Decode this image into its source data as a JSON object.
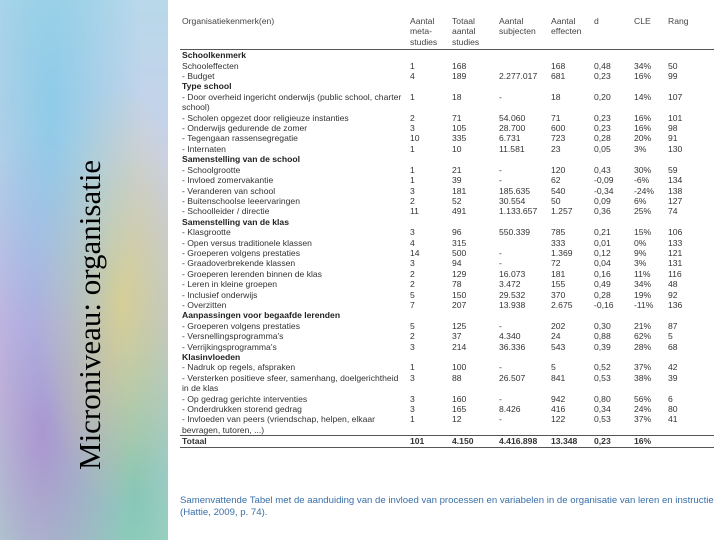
{
  "slide_title": "Microniveau: organisatie",
  "table": {
    "columns": [
      "Organisatiekenmerk(en)",
      "Aantal meta-studies",
      "Totaal aantal studies",
      "Aantal subjecten",
      "Aantal effecten",
      "d",
      "CLE",
      "Rang"
    ],
    "rows": [
      {
        "section": "Schoolkenmerk"
      },
      {
        "label": "Schooleffecten",
        "cells": [
          "1",
          "168",
          "",
          "168",
          "0,48",
          "34%",
          "50"
        ]
      },
      {
        "label": "- Budget",
        "cells": [
          "4",
          "189",
          "2.277.017",
          "681",
          "0,23",
          "16%",
          "99"
        ]
      },
      {
        "section": "Type school"
      },
      {
        "label": "- Door overheid ingericht onderwijs (public school, charter school)",
        "cells": [
          "1",
          "18",
          "-",
          "18",
          "0,20",
          "14%",
          "107"
        ]
      },
      {
        "label": "- Scholen opgezet door religieuze instanties",
        "cells": [
          "2",
          "71",
          "54.060",
          "71",
          "0,23",
          "16%",
          "101"
        ]
      },
      {
        "label": "- Onderwijs gedurende de zomer",
        "cells": [
          "3",
          "105",
          "28.700",
          "600",
          "0,23",
          "16%",
          "98"
        ]
      },
      {
        "label": "- Tegengaan rassensegregatie",
        "cells": [
          "10",
          "335",
          "6.731",
          "723",
          "0,28",
          "20%",
          "91"
        ]
      },
      {
        "label": "- Internaten",
        "cells": [
          "1",
          "10",
          "11.581",
          "23",
          "0,05",
          "3%",
          "130"
        ]
      },
      {
        "section": "Samenstelling van de school"
      },
      {
        "label": "- Schoolgrootte",
        "cells": [
          "1",
          "21",
          "-",
          "120",
          "0,43",
          "30%",
          "59"
        ]
      },
      {
        "label": "- Invloed zomervakantie",
        "cells": [
          "1",
          "39",
          "-",
          "62",
          "-0,09",
          "-6%",
          "134"
        ]
      },
      {
        "label": "- Veranderen van school",
        "cells": [
          "3",
          "181",
          "185.635",
          "540",
          "-0,34",
          "-24%",
          "138"
        ]
      },
      {
        "label": "- Buitenschoolse leeervaringen",
        "cells": [
          "2",
          "52",
          "30.554",
          "50",
          "0,09",
          "6%",
          "127"
        ]
      },
      {
        "label": "- Schoolleider / directie",
        "cells": [
          "11",
          "491",
          "1.133.657",
          "1.257",
          "0,36",
          "25%",
          "74"
        ]
      },
      {
        "section": "Samenstelling van de klas"
      },
      {
        "label": "- Klasgrootte",
        "cells": [
          "3",
          "96",
          "550.339",
          "785",
          "0,21",
          "15%",
          "106"
        ]
      },
      {
        "label": "- Open versus traditionele klassen",
        "cells": [
          "4",
          "315",
          "",
          "333",
          "0,01",
          "0%",
          "133"
        ]
      },
      {
        "label": "- Groeperen volgens prestaties",
        "cells": [
          "14",
          "500",
          "-",
          "1.369",
          "0,12",
          "9%",
          "121"
        ]
      },
      {
        "label": "- Graadoverbrekende klassen",
        "cells": [
          "3",
          "94",
          "-",
          "72",
          "0,04",
          "3%",
          "131"
        ]
      },
      {
        "label": "- Groeperen lerenden binnen de klas",
        "cells": [
          "2",
          "129",
          "16.073",
          "181",
          "0,16",
          "11%",
          "116"
        ]
      },
      {
        "label": "- Leren in kleine groepen",
        "cells": [
          "2",
          "78",
          "3.472",
          "155",
          "0,49",
          "34%",
          "48"
        ]
      },
      {
        "label": "- Inclusief onderwijs",
        "cells": [
          "5",
          "150",
          "29.532",
          "370",
          "0,28",
          "19%",
          "92"
        ]
      },
      {
        "label": "- Overzitten",
        "cells": [
          "7",
          "207",
          "13.938",
          "2.675",
          "-0,16",
          "-11%",
          "136"
        ]
      },
      {
        "section": "Aanpassingen voor begaafde lerenden"
      },
      {
        "label": "- Groeperen volgens prestaties",
        "cells": [
          "5",
          "125",
          "-",
          "202",
          "0,30",
          "21%",
          "87"
        ]
      },
      {
        "label": "- Versnellingsprogramma's",
        "cells": [
          "2",
          "37",
          "4.340",
          "24",
          "0,88",
          "62%",
          "5"
        ]
      },
      {
        "label": "- Verrijkingsprogramma's",
        "cells": [
          "3",
          "214",
          "36.336",
          "543",
          "0,39",
          "28%",
          "68"
        ]
      },
      {
        "section": "Klasinvloeden"
      },
      {
        "label": "- Nadruk op regels, afspraken",
        "cells": [
          "1",
          "100",
          "-",
          "5",
          "0,52",
          "37%",
          "42"
        ]
      },
      {
        "label": "- Versterken positieve sfeer, samenhang, doelgerichtheid in de klas",
        "cells": [
          "3",
          "88",
          "26.507",
          "841",
          "0,53",
          "38%",
          "39"
        ]
      },
      {
        "label": "- Op gedrag gerichte interventies",
        "cells": [
          "3",
          "160",
          "-",
          "942",
          "0,80",
          "56%",
          "6"
        ]
      },
      {
        "label": "- Onderdrukken storend gedrag",
        "cells": [
          "3",
          "165",
          "8.426",
          "416",
          "0,34",
          "24%",
          "80"
        ]
      },
      {
        "label": "- Invloeden van peers (vriendschap, helpen, elkaar bevragen, tutoren, ...)",
        "cells": [
          "1",
          "12",
          "-",
          "122",
          "0,53",
          "37%",
          "41"
        ]
      }
    ],
    "total": {
      "label": "Totaal",
      "cells": [
        "101",
        "4.150",
        "4.416.898",
        "13.348",
        "0,23",
        "16%",
        ""
      ]
    },
    "caption": "Samenvattende Tabel met de aanduiding van de invloed van processen en variabelen in de organisatie van leren en instructie (Hattie, 2009, p. 74)."
  }
}
